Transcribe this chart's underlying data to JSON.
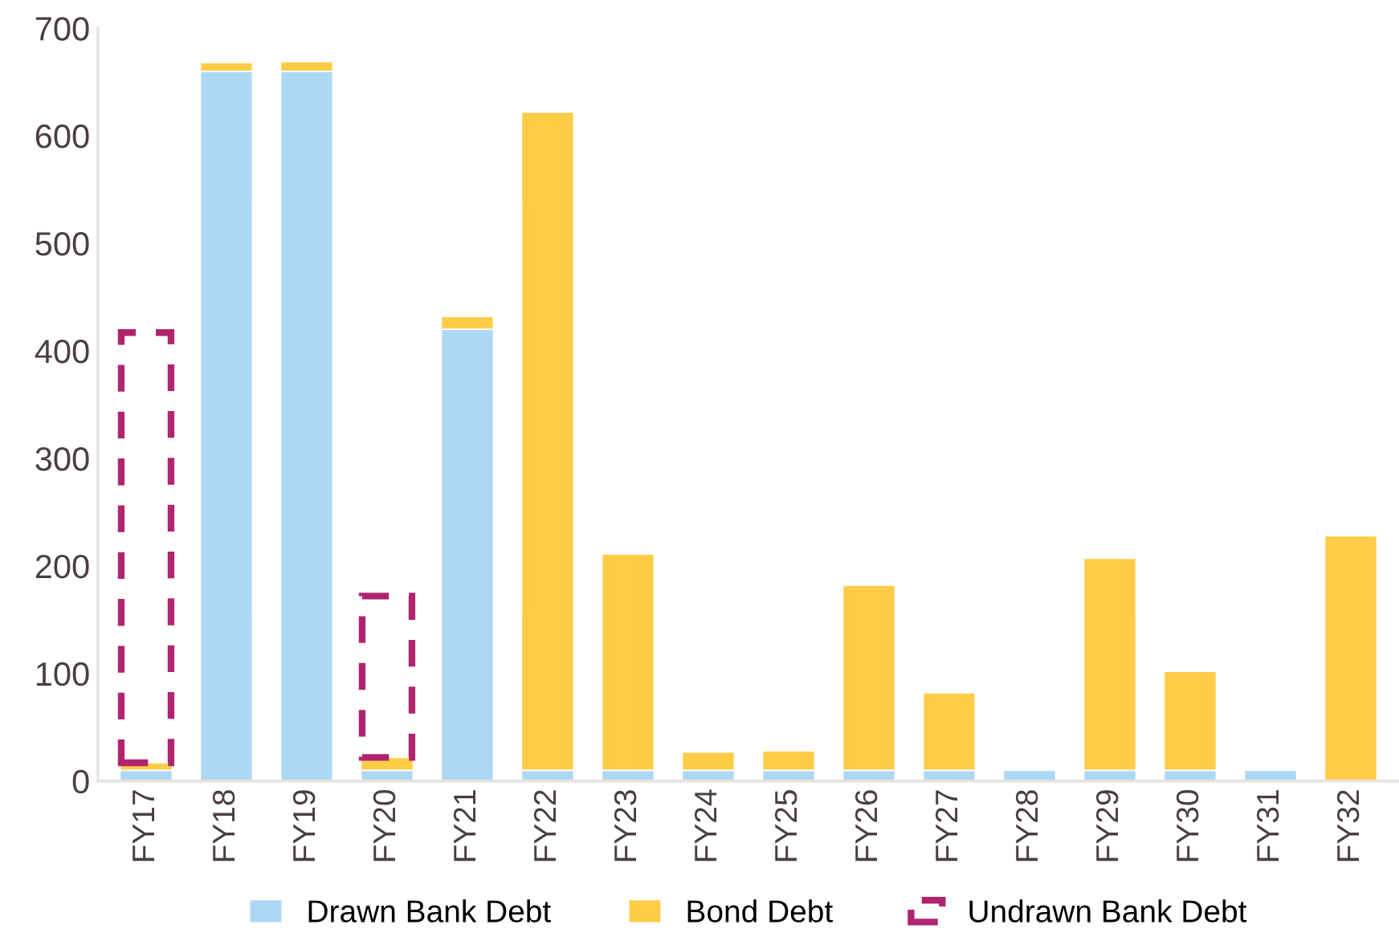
{
  "chart_data": {
    "type": "bar",
    "stacked": true,
    "categories": [
      "FY17",
      "FY18",
      "FY19",
      "FY20",
      "FY21",
      "FY22",
      "FY23",
      "FY24",
      "FY25",
      "FY26",
      "FY27",
      "FY28",
      "FY29",
      "FY30",
      "FY31",
      "FY32"
    ],
    "series": [
      {
        "name": "Drawn Bank Debt",
        "color": "#add8f5",
        "values": [
          10,
          660,
          660,
          10,
          420,
          10,
          10,
          10,
          10,
          10,
          10,
          10,
          10,
          10,
          10,
          0
        ]
      },
      {
        "name": "Bond Debt",
        "color": "#ffcc47",
        "values": [
          7,
          8,
          9,
          12,
          12,
          612,
          201,
          17,
          18,
          172,
          72,
          0,
          197,
          92,
          0,
          228
        ]
      },
      {
        "name": "Undrawn Bank Debt",
        "color": "#b0246f",
        "line_style": "dashed",
        "values": [
          400,
          null,
          null,
          150,
          null,
          null,
          null,
          null,
          null,
          null,
          null,
          null,
          null,
          null,
          null,
          null
        ]
      }
    ],
    "ylim": [
      0,
      700
    ],
    "yticks": [
      0,
      100,
      200,
      300,
      400,
      500,
      600,
      700
    ],
    "grid": false,
    "legend": "bottom"
  }
}
